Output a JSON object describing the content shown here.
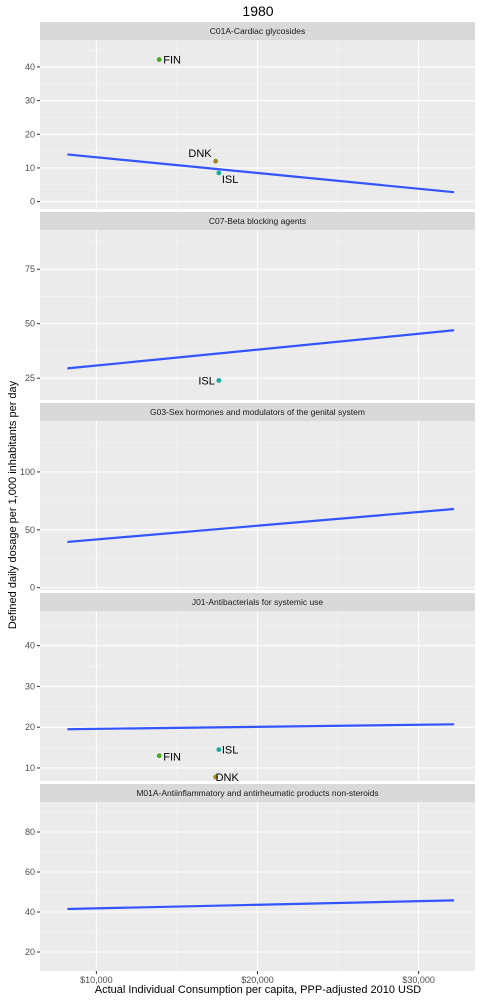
{
  "chart_data": {
    "type": "scatter",
    "title": "1980",
    "xlabel": "Actual Individual Consumption per capita, PPP-adjusted 2010 USD",
    "ylabel": "Defined daily dosage per 1,000 inhabitants per day",
    "xlim": [
      6500,
      33500
    ],
    "x_ticks": [
      10000,
      20000,
      30000
    ],
    "x_tick_labels": [
      "$10,000",
      "$20,000",
      "$30,000"
    ],
    "grid": true,
    "legend": "none",
    "country_colors": {
      "FIN": "#44aa22",
      "DNK": "#a08a20",
      "ISL": "#19a89c"
    },
    "trend_color": "#3355ff",
    "panels": [
      {
        "label": "C01A-Cardiac glycosides",
        "ylim": [
          -2.2,
          48
        ],
        "y_ticks": [
          0,
          10,
          20,
          30,
          40
        ],
        "points": [
          {
            "country": "FIN",
            "x": 13900,
            "y": 42.2
          },
          {
            "country": "DNK",
            "x": 17400,
            "y": 12.0
          },
          {
            "country": "ISL",
            "x": 17600,
            "y": 8.5
          }
        ],
        "trend": {
          "x": [
            8200,
            32200
          ],
          "y": [
            14.0,
            2.8
          ]
        }
      },
      {
        "label": "C07-Beta blocking agents",
        "ylim": [
          15,
          93
        ],
        "y_ticks": [
          25,
          50,
          75
        ],
        "points": [
          {
            "country": "ISL",
            "x": 17600,
            "y": 24.0
          }
        ],
        "trend": {
          "x": [
            8200,
            32200
          ],
          "y": [
            29.5,
            47.0
          ]
        }
      },
      {
        "label": "G03-Sex hormones and modulators of the genital system",
        "ylim": [
          -2,
          144
        ],
        "y_ticks": [
          0,
          50,
          100
        ],
        "points": [],
        "trend": {
          "x": [
            8200,
            32200
          ],
          "y": [
            39.5,
            68.0
          ]
        }
      },
      {
        "label": "J01-Antibacterials for systemic use",
        "ylim": [
          6.8,
          48.5
        ],
        "y_ticks": [
          10,
          20,
          30,
          40
        ],
        "points": [
          {
            "country": "FIN",
            "x": 13900,
            "y": 13.0
          },
          {
            "country": "ISL",
            "x": 17600,
            "y": 14.5
          },
          {
            "country": "DNK",
            "x": 17400,
            "y": 7.8
          }
        ],
        "trend": {
          "x": [
            8200,
            32200
          ],
          "y": [
            19.5,
            20.7
          ]
        }
      },
      {
        "label": "M01A-Antiinflammatory and antirheumatic products non-steroids",
        "ylim": [
          10.5,
          95
        ],
        "y_ticks": [
          20,
          40,
          60,
          80
        ],
        "points": [],
        "trend": {
          "x": [
            8200,
            32200
          ],
          "y": [
            41.5,
            45.8
          ]
        }
      }
    ]
  }
}
